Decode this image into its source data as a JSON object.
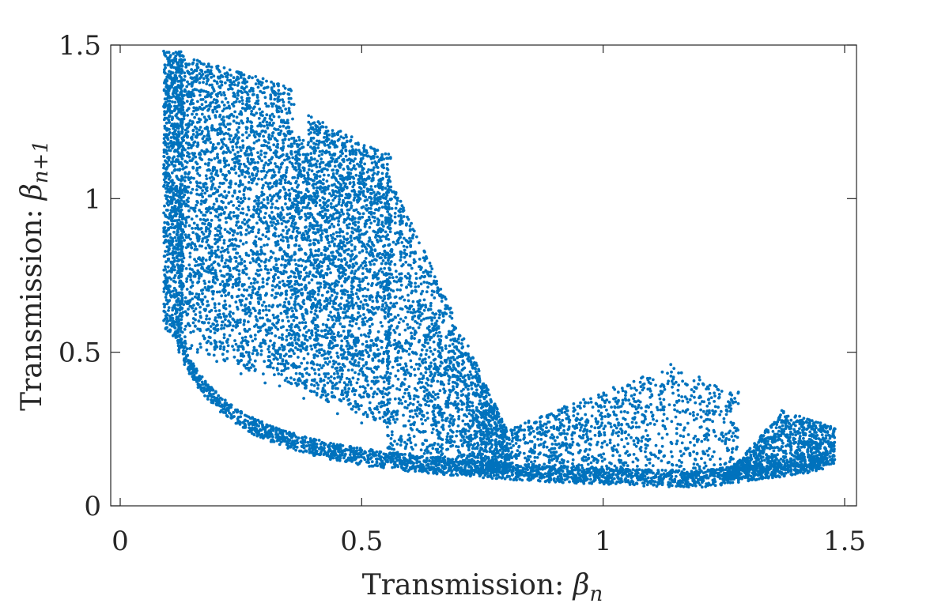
{
  "chart_data": {
    "type": "scatter",
    "title": "",
    "xlabel_text": "Transmission: ",
    "xlabel_symbol": "β",
    "xlabel_subscript": "n",
    "ylabel_text": "Transmission: ",
    "ylabel_symbol": "β",
    "ylabel_subscript": "n+1",
    "xlim": [
      0,
      1.5
    ],
    "ylim": [
      0,
      1.5
    ],
    "x_ticks": [
      0,
      0.5,
      1,
      1.5
    ],
    "y_ticks": [
      0,
      0.5,
      1,
      1.5
    ],
    "x_tick_labels": [
      "0",
      "0.5",
      "1",
      "1.5"
    ],
    "y_tick_labels": [
      "0",
      "0.5",
      "1",
      "1.5"
    ],
    "grid": false,
    "box": true,
    "marker_color": "#0072BD",
    "series": [
      {
        "description_points": [
          [
            0.09,
            1.48
          ],
          [
            0.12,
            1.47
          ],
          [
            0.16,
            1.45
          ],
          [
            0.2,
            1.43
          ],
          [
            0.25,
            1.4
          ],
          [
            0.29,
            1.38
          ],
          [
            0.32,
            1.34
          ],
          [
            0.35,
            1.22
          ],
          [
            0.37,
            1.2
          ],
          [
            0.39,
            1.27
          ],
          [
            0.43,
            1.22
          ],
          [
            0.48,
            1.17
          ],
          [
            0.52,
            1.13
          ],
          [
            0.55,
            1.0
          ],
          [
            0.58,
            0.8
          ],
          [
            0.62,
            0.62
          ],
          [
            0.66,
            0.52
          ],
          [
            0.7,
            0.42
          ],
          [
            0.75,
            0.33
          ],
          [
            0.78,
            0.26
          ],
          [
            0.09,
            1.3
          ],
          [
            0.09,
            1.1
          ],
          [
            0.1,
            0.9
          ],
          [
            0.1,
            0.7
          ],
          [
            0.11,
            0.6
          ],
          [
            0.12,
            0.53
          ],
          [
            0.16,
            0.5
          ],
          [
            0.2,
            0.47
          ],
          [
            0.25,
            0.43
          ],
          [
            0.3,
            0.4
          ],
          [
            0.33,
            0.39
          ],
          [
            0.38,
            0.35
          ],
          [
            0.45,
            0.3
          ],
          [
            0.5,
            0.27
          ],
          [
            0.6,
            0.22
          ],
          [
            0.7,
            0.18
          ],
          [
            0.8,
            0.15
          ],
          [
            0.9,
            0.12
          ],
          [
            1.0,
            0.1
          ],
          [
            1.1,
            0.09
          ],
          [
            1.2,
            0.085
          ],
          [
            1.3,
            0.09
          ],
          [
            1.4,
            0.11
          ],
          [
            1.45,
            0.15
          ],
          [
            1.48,
            0.25
          ],
          [
            1.14,
            0.46
          ],
          [
            1.2,
            0.41
          ],
          [
            1.28,
            0.37
          ],
          [
            1.37,
            0.31
          ],
          [
            1.45,
            0.27
          ],
          [
            0.27,
            1.25
          ],
          [
            0.25,
            1.0
          ],
          [
            0.22,
            0.8
          ],
          [
            0.2,
            0.6
          ]
        ]
      }
    ]
  }
}
